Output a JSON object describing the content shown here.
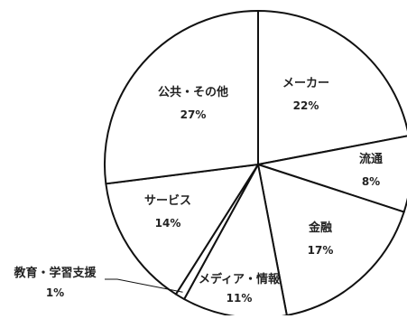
{
  "chart_data": {
    "type": "pie",
    "slices": [
      {
        "label": "メーカー",
        "value": 22,
        "value_label": "22%"
      },
      {
        "label": "流通",
        "value": 8,
        "value_label": "8%"
      },
      {
        "label": "金融",
        "value": 17,
        "value_label": "17%"
      },
      {
        "label": "メディア・情報",
        "value": 11,
        "value_label": "11%"
      },
      {
        "label": "教育・学習支援",
        "value": 1,
        "value_label": "1%"
      },
      {
        "label": "サービス",
        "value": 14,
        "value_label": "14%"
      },
      {
        "label": "公共・その他",
        "value": 27,
        "value_label": "27%"
      }
    ],
    "colors": {
      "fill": "#ffffff",
      "stroke": "#111111",
      "text": "#222222"
    }
  }
}
